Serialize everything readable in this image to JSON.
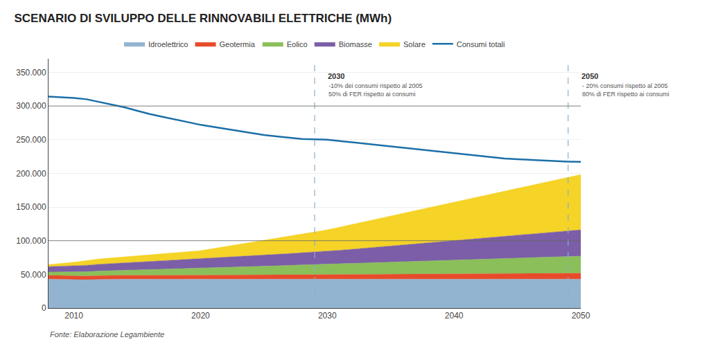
{
  "chart_data": {
    "type": "area",
    "stacked": true,
    "title": "SCENARIO DI SVILUPPO DELLE RINNOVABILI ELETTRICHE (MWh)",
    "source": "Fonte: Elaborazione Legambiente",
    "x": [
      2008,
      2009,
      2010,
      2011,
      2012,
      2013,
      2014,
      2015,
      2016,
      2017,
      2018,
      2019,
      2020,
      2021,
      2022,
      2023,
      2024,
      2025,
      2026,
      2027,
      2028,
      2029,
      2030,
      2031,
      2032,
      2033,
      2034,
      2035,
      2036,
      2037,
      2038,
      2039,
      2040,
      2041,
      2042,
      2043,
      2044,
      2045,
      2046,
      2047,
      2048,
      2049,
      2050
    ],
    "series": [
      {
        "name": "Idroelettrico",
        "type": "area",
        "color": "#92B4D0",
        "values": [
          43000,
          42500,
          42000,
          42000,
          42500,
          43000,
          43000,
          43000,
          43000,
          43000,
          43000,
          43000,
          43000,
          43000,
          43000,
          43000,
          43000,
          43000,
          43000,
          43000,
          43000,
          43000,
          43000,
          43000,
          43000,
          43000,
          43000,
          43000,
          43000,
          43000,
          43000,
          43000,
          43000,
          43000,
          43000,
          43000,
          43000,
          43000,
          43000,
          43000,
          43000,
          43000,
          43000
        ]
      },
      {
        "name": "Geotermia",
        "type": "area",
        "color": "#E84B2A",
        "values": [
          5500,
          5500,
          5500,
          5500,
          5500,
          5500,
          5500,
          5500,
          5700,
          5700,
          5700,
          5700,
          5700,
          5800,
          5900,
          6000,
          6100,
          6200,
          6300,
          6400,
          6500,
          6600,
          6700,
          6800,
          6900,
          7000,
          7100,
          7200,
          7300,
          7400,
          7500,
          7600,
          7700,
          7800,
          7900,
          8000,
          8100,
          8200,
          8300,
          8400,
          8500,
          8600,
          8700
        ]
      },
      {
        "name": "Eolico",
        "type": "area",
        "color": "#8BBF5A",
        "values": [
          5000,
          5500,
          6000,
          6500,
          7000,
          7000,
          7500,
          8000,
          8500,
          9000,
          9500,
          10000,
          10500,
          11000,
          11500,
          12000,
          12500,
          13000,
          13500,
          14000,
          14500,
          15000,
          15500,
          16000,
          16500,
          17000,
          17500,
          18000,
          18500,
          19000,
          19500,
          20000,
          20500,
          21000,
          21500,
          22000,
          22500,
          23000,
          23500,
          24000,
          24500,
          25000,
          25500
        ]
      },
      {
        "name": "Biomasse",
        "type": "area",
        "color": "#7B5EA7",
        "values": [
          8000,
          8500,
          9000,
          9500,
          10000,
          10500,
          11000,
          11500,
          12000,
          12500,
          13000,
          13500,
          14000,
          14500,
          15000,
          15500,
          16000,
          16500,
          17000,
          17500,
          18000,
          18500,
          19000,
          20000,
          21000,
          22000,
          23000,
          24000,
          25000,
          26000,
          27000,
          28000,
          29000,
          30000,
          31000,
          32000,
          33000,
          34000,
          35000,
          36000,
          37000,
          38000,
          39000
        ]
      },
      {
        "name": "Solare",
        "type": "area",
        "color": "#F5D327",
        "values": [
          3000,
          4000,
          5500,
          7000,
          8000,
          8500,
          9000,
          9500,
          10000,
          10500,
          11000,
          11500,
          12000,
          14000,
          16000,
          18000,
          20000,
          22000,
          24000,
          26000,
          28000,
          30000,
          32000,
          34500,
          37000,
          39500,
          42000,
          44500,
          47000,
          49500,
          52000,
          54500,
          57000,
          59500,
          62000,
          64500,
          67000,
          69500,
          72000,
          74500,
          77000,
          79500,
          82000
        ]
      },
      {
        "name": "Consumi totali",
        "type": "line",
        "color": "#1B6FA8",
        "values": [
          314000,
          313000,
          312000,
          310000,
          306000,
          302000,
          298000,
          293000,
          288000,
          284000,
          280000,
          276000,
          272000,
          269000,
          266000,
          263000,
          260000,
          257000,
          255000,
          253000,
          251000,
          250500,
          250000,
          248000,
          246000,
          244000,
          242000,
          240000,
          238000,
          236000,
          234000,
          232000,
          230000,
          228000,
          226000,
          224000,
          222000,
          221000,
          220000,
          219000,
          218000,
          217500,
          217000
        ]
      }
    ],
    "xlim": [
      2008,
      2050
    ],
    "xticks": [
      2010,
      2020,
      2030,
      2040,
      2050
    ],
    "ylim": [
      0,
      370000
    ],
    "yticks": [
      0,
      {
        "value": 50000,
        "label": "50.000"
      },
      {
        "value": 100000,
        "label": "100.000"
      },
      {
        "value": 150000,
        "label": "150.000"
      },
      {
        "value": 200000,
        "label": "200.000"
      },
      {
        "value": 250000,
        "label": "250.000"
      },
      {
        "value": 300000,
        "label": "300.000"
      },
      {
        "value": 350000,
        "label": "350.000"
      }
    ],
    "vlines": [
      2029,
      2049
    ],
    "hlines": [
      300000,
      100000
    ],
    "annotations": [
      {
        "x": 2030,
        "y": 352000,
        "title": "2030",
        "text_y": 340000,
        "text": "-10% dei consumi rispetto al 2005\n50% di FER rispetto ai consumi"
      },
      {
        "x": 2050,
        "y": 352000,
        "title": "2050",
        "text_y": 340000,
        "text": "- 20% consumi rispetto al 2005\n80% di FER rispetto ai consumi"
      }
    ],
    "grid": "y",
    "legend": "top"
  }
}
